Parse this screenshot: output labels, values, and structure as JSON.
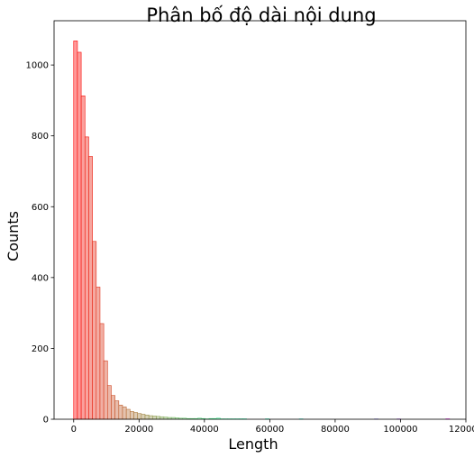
{
  "chart_data": {
    "type": "bar",
    "title": "Phân bố độ dài nội dung",
    "xlabel": "Length",
    "ylabel": "Counts",
    "xlim": [
      -6000,
      120000
    ],
    "ylim": [
      0,
      1125
    ],
    "grid": false,
    "x_ticks": [
      0,
      20000,
      40000,
      60000,
      80000,
      100000,
      120000
    ],
    "x_tick_labels": [
      "0",
      "20000",
      "40000",
      "60000",
      "80000",
      "100000",
      "120000"
    ],
    "y_ticks": [
      0,
      200,
      400,
      600,
      800,
      1000
    ],
    "y_tick_labels": [
      "0",
      "200",
      "400",
      "600",
      "800",
      "1000"
    ],
    "bin_start": 0,
    "bin_width": 1150,
    "bin_counts": [
      1068,
      1036,
      913,
      797,
      742,
      502,
      373,
      270,
      165,
      95,
      67,
      52,
      40,
      35,
      28,
      22,
      19,
      16,
      14,
      12,
      10,
      9,
      8,
      7,
      6,
      5,
      5,
      4,
      3,
      3,
      2,
      2,
      2,
      3,
      2,
      1,
      2,
      2,
      3,
      1,
      1,
      1,
      1,
      1,
      1,
      1,
      0,
      0,
      0,
      0,
      0,
      1,
      0,
      0,
      0,
      0,
      0,
      0,
      0,
      0,
      1,
      0,
      0,
      0,
      0,
      0,
      0,
      0,
      0,
      0,
      0,
      0,
      0,
      0,
      0,
      0,
      0,
      0,
      0,
      0,
      1,
      0,
      0,
      0,
      0,
      0,
      1,
      0,
      0,
      0,
      0,
      0,
      0,
      0,
      0,
      0,
      0,
      0,
      0,
      1
    ],
    "colormap": "rainbow",
    "bar_alpha": 0.4
  }
}
